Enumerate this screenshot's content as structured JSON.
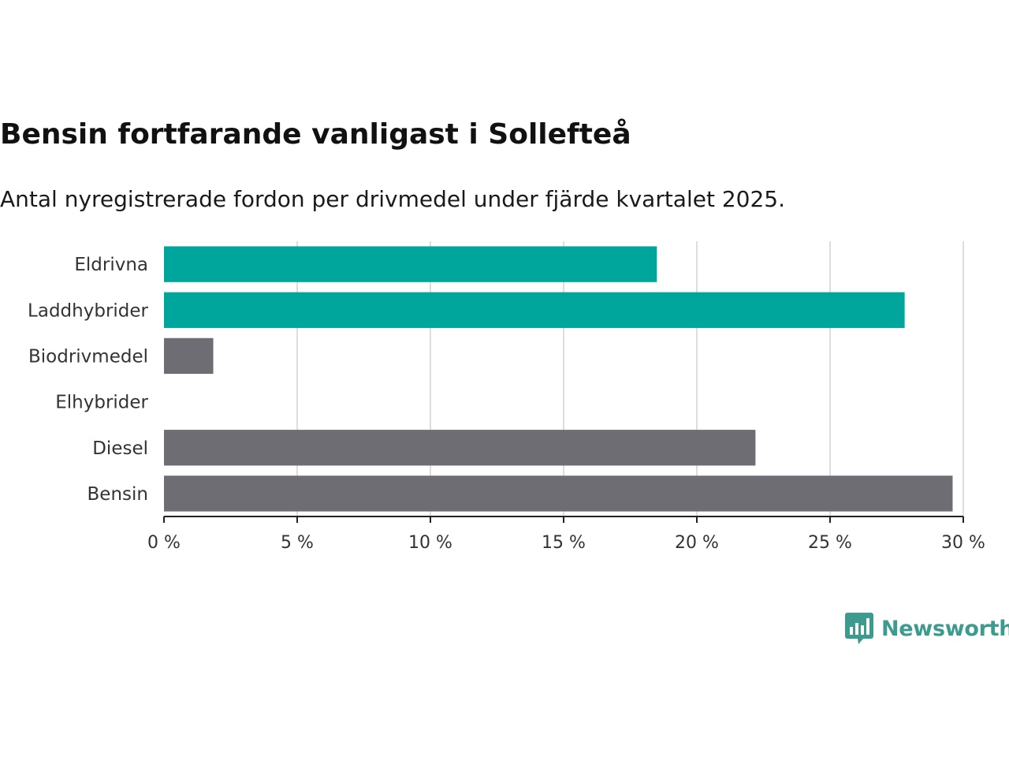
{
  "title": "Bensin fortfarande vanligast i Sollefteå",
  "subtitle": "Antal nyregistrerade fordon per drivmedel under fjärde kvartalet 2025.",
  "chart_data": {
    "type": "bar",
    "orientation": "horizontal",
    "categories": [
      "Eldrivna",
      "Laddhybrider",
      "Biodrivmedel",
      "Elhybrider",
      "Diesel",
      "Bensin"
    ],
    "values": [
      18.5,
      27.8,
      1.85,
      0,
      22.2,
      29.6
    ],
    "unit": "%",
    "xlim": [
      0,
      30
    ],
    "xticks": [
      0,
      5,
      10,
      15,
      20,
      25,
      30
    ],
    "xtick_labels": [
      "0 %",
      "5 %",
      "10 %",
      "15 %",
      "20 %",
      "25 %",
      "30 %"
    ],
    "grid": true,
    "colors": {
      "Eldrivna": "#00a59b",
      "Laddhybrider": "#00a59b",
      "Biodrivmedel": "#6e6d73",
      "Elhybrider": "#6e6d73",
      "Diesel": "#6e6d73",
      "Bensin": "#6e6d73"
    },
    "gridline_color": "#dddddd",
    "axis_color": "#222222"
  },
  "brand": {
    "name": "Newsworthy",
    "icon": "newsworthy-bar-chart-icon",
    "color": "#3c9a8f"
  }
}
